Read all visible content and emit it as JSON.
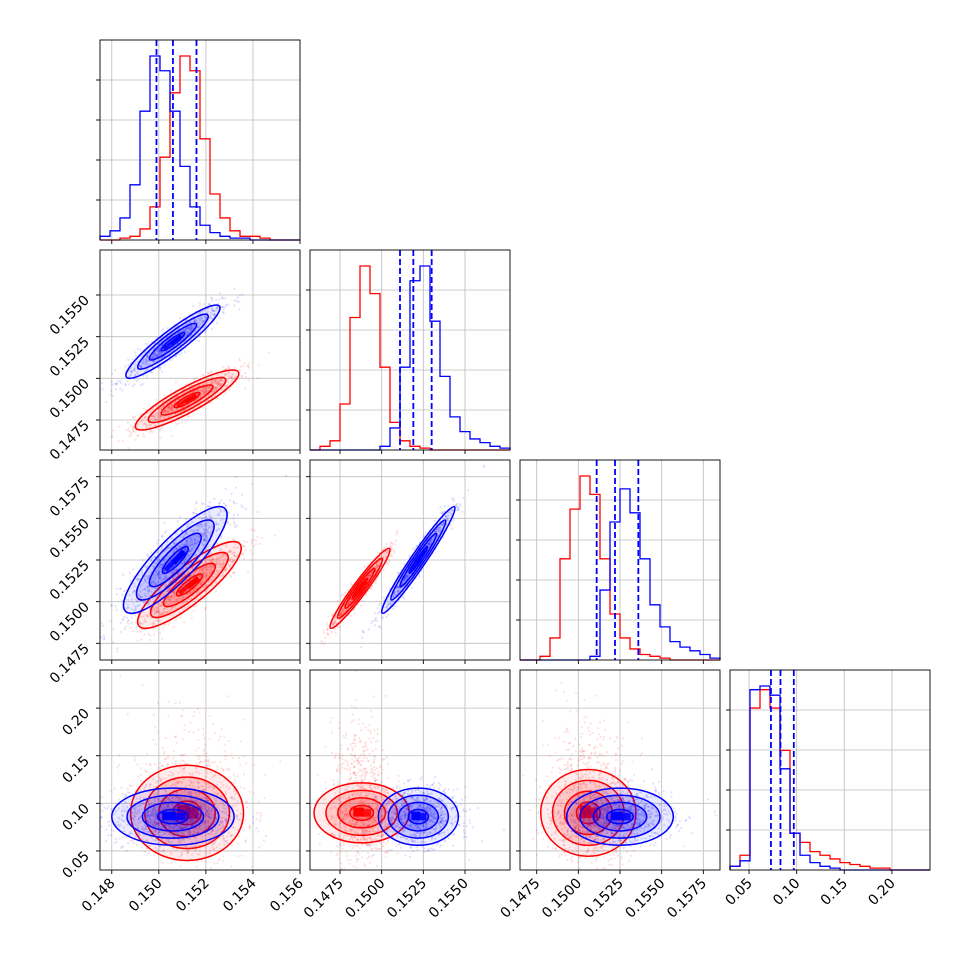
{
  "chart_data": {
    "type": "corner",
    "grid": true,
    "series_colors": {
      "blue": "#0000ff",
      "red": "#ff0000"
    },
    "parameters": [
      {
        "id": "p1",
        "range": [
          0.1475,
          0.156
        ],
        "tick_values": [
          0.148,
          0.15,
          0.152,
          0.154,
          0.156
        ],
        "tick_labels": [
          "0.148",
          "0.150",
          "0.152",
          "0.154",
          "0.156"
        ]
      },
      {
        "id": "p2",
        "range": [
          0.1457,
          0.1577
        ],
        "tick_values": [
          0.1475,
          0.15,
          0.1525,
          0.155
        ],
        "tick_labels": [
          "0.1475",
          "0.1500",
          "0.1525",
          "0.1550"
        ]
      },
      {
        "id": "p3",
        "range": [
          0.1465,
          0.1585
        ],
        "tick_values": [
          0.1475,
          0.15,
          0.1525,
          0.155,
          0.1575
        ],
        "tick_labels": [
          "0.1475",
          "0.1500",
          "0.1525",
          "0.1550",
          "0.1575"
        ]
      },
      {
        "id": "p4",
        "range": [
          0.03,
          0.24
        ],
        "tick_values": [
          0.05,
          0.1,
          0.15,
          0.2
        ],
        "tick_labels": [
          "0.05",
          "0.10",
          "0.15",
          "0.20"
        ]
      }
    ],
    "quantiles_blue": [
      [
        0.1499,
        0.1506,
        0.1516
      ],
      [
        0.1511,
        0.1519,
        0.153
      ],
      [
        0.1511,
        0.1522,
        0.1536
      ],
      [
        0.073,
        0.083,
        0.097
      ]
    ],
    "hist_blue": [
      [
        0.02,
        0.05,
        0.12,
        0.3,
        0.7,
        1.0,
        0.92,
        0.7,
        0.4,
        0.18,
        0.08,
        0.04,
        0.02,
        0.01,
        0.01,
        0,
        0,
        0,
        0,
        0
      ],
      [
        0,
        0,
        0,
        0,
        0,
        0,
        0,
        0.02,
        0.12,
        0.45,
        0.92,
        1.0,
        0.7,
        0.4,
        0.18,
        0.1,
        0.06,
        0.04,
        0.02,
        0.01
      ],
      [
        0,
        0,
        0,
        0,
        0,
        0,
        0,
        0.02,
        0.38,
        0.75,
        0.93,
        0.8,
        0.55,
        0.3,
        0.18,
        0.1,
        0.07,
        0.05,
        0.03,
        0.01
      ],
      [
        0.02,
        0.05,
        0.98,
        1.0,
        0.95,
        0.55,
        0.2,
        0.08,
        0.04,
        0.02,
        0.01,
        0,
        0,
        0,
        0,
        0,
        0,
        0,
        0,
        0
      ]
    ],
    "hist_red": [
      [
        0,
        0,
        0.01,
        0.02,
        0.06,
        0.18,
        0.45,
        0.8,
        1.0,
        0.92,
        0.55,
        0.25,
        0.12,
        0.05,
        0.02,
        0.02,
        0.01,
        0,
        0,
        0
      ],
      [
        0,
        0.02,
        0.05,
        0.25,
        0.72,
        1.0,
        0.85,
        0.45,
        0.15,
        0.05,
        0.02,
        0.01,
        0,
        0,
        0,
        0,
        0,
        0,
        0,
        0
      ],
      [
        0,
        0,
        0.02,
        0.12,
        0.55,
        0.82,
        1.0,
        0.9,
        0.55,
        0.25,
        0.12,
        0.06,
        0.03,
        0.02,
        0.01,
        0,
        0,
        0,
        0,
        0
      ],
      [
        0.02,
        0.08,
        0.88,
        0.98,
        0.88,
        0.65,
        0.2,
        0.15,
        0.1,
        0.08,
        0.06,
        0.04,
        0.03,
        0.02,
        0.01,
        0.01,
        0,
        0,
        0,
        0
      ]
    ],
    "scatter": [
      {
        "row": 1,
        "col": 0,
        "blue": {
          "mean": [
            0.1506,
            0.1522
          ],
          "std": [
            0.001,
            0.0011
          ],
          "rho": 0.92
        },
        "red": {
          "mean": [
            0.1512,
            0.1487
          ],
          "std": [
            0.0011,
            0.0009
          ],
          "rho": 0.88
        }
      },
      {
        "row": 2,
        "col": 0,
        "blue": {
          "mean": [
            0.1507,
            0.1525
          ],
          "std": [
            0.0011,
            0.0016
          ],
          "rho": 0.85
        },
        "red": {
          "mean": [
            0.1513,
            0.151
          ],
          "std": [
            0.0011,
            0.0013
          ],
          "rho": 0.85
        }
      },
      {
        "row": 2,
        "col": 1,
        "blue": {
          "mean": [
            0.1522,
            0.1525
          ],
          "std": [
            0.0011,
            0.0016
          ],
          "rho": 0.97
        },
        "red": {
          "mean": [
            0.1487,
            0.1508
          ],
          "std": [
            0.0009,
            0.0012
          ],
          "rho": 0.96
        }
      },
      {
        "row": 3,
        "col": 0,
        "blue": {
          "mean": [
            0.1506,
            0.086
          ],
          "std": [
            0.0013,
            0.015
          ],
          "rho": 0.0
        },
        "red": {
          "mean": [
            0.1512,
            0.09
          ],
          "std": [
            0.0012,
            0.025
          ],
          "rho": 0.0
        }
      },
      {
        "row": 3,
        "col": 1,
        "blue": {
          "mean": [
            0.1522,
            0.086
          ],
          "std": [
            0.0012,
            0.015
          ],
          "rho": 0.0
        },
        "red": {
          "mean": [
            0.1488,
            0.09
          ],
          "std": [
            0.0009,
            0.025
          ],
          "rho": 0.0
        }
      },
      {
        "row": 3,
        "col": 2,
        "blue": {
          "mean": [
            0.1525,
            0.086
          ],
          "std": [
            0.0016,
            0.015
          ],
          "rho": 0.0
        },
        "red": {
          "mean": [
            0.1506,
            0.09
          ],
          "std": [
            0.0013,
            0.025
          ],
          "rho": 0.0
        }
      }
    ]
  }
}
